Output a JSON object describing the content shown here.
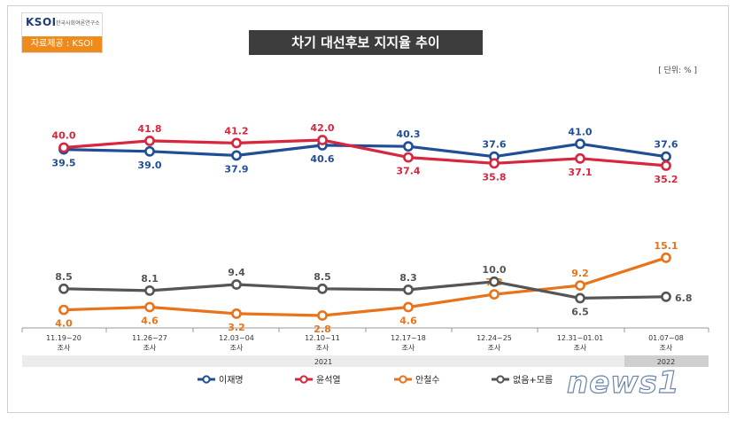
{
  "logo": {
    "text": "KSOI",
    "subtitle": "한국사회여론연구소",
    "source": "자료제공 : KSOI"
  },
  "watermark": "news1",
  "chart_data": {
    "type": "line",
    "title": "차기 대선후보 지지율 추이",
    "unit": "[ 단위: % ]",
    "categories": [
      [
        "11.19~20",
        "조사"
      ],
      [
        "11.26~27",
        "조사"
      ],
      [
        "12.03~04",
        "조사"
      ],
      [
        "12.10~11",
        "조사"
      ],
      [
        "12.17~18",
        "조사"
      ],
      [
        "12.24~25",
        "조사"
      ],
      [
        "12.31~01.01",
        "조사"
      ],
      [
        "01.07~08",
        "조사"
      ]
    ],
    "year_labels": [
      "2021",
      "2022"
    ],
    "series": [
      {
        "name": "이재명",
        "color": "#1f4e96",
        "values": [
          39.5,
          39.0,
          37.9,
          40.6,
          40.3,
          37.6,
          41.0,
          37.6
        ]
      },
      {
        "name": "윤석열",
        "color": "#d7263d",
        "values": [
          40.0,
          41.8,
          41.2,
          42.0,
          37.4,
          35.8,
          37.1,
          35.2
        ]
      },
      {
        "name": "안철수",
        "color": "#e8731a",
        "values": [
          4.0,
          4.6,
          3.2,
          2.8,
          4.6,
          7.3,
          9.2,
          15.1
        ]
      },
      {
        "name": "없음+모름",
        "color": "#555555",
        "values": [
          8.5,
          8.1,
          9.4,
          8.5,
          8.3,
          10.0,
          6.5,
          6.8
        ]
      }
    ],
    "legend_position": "bottom"
  }
}
